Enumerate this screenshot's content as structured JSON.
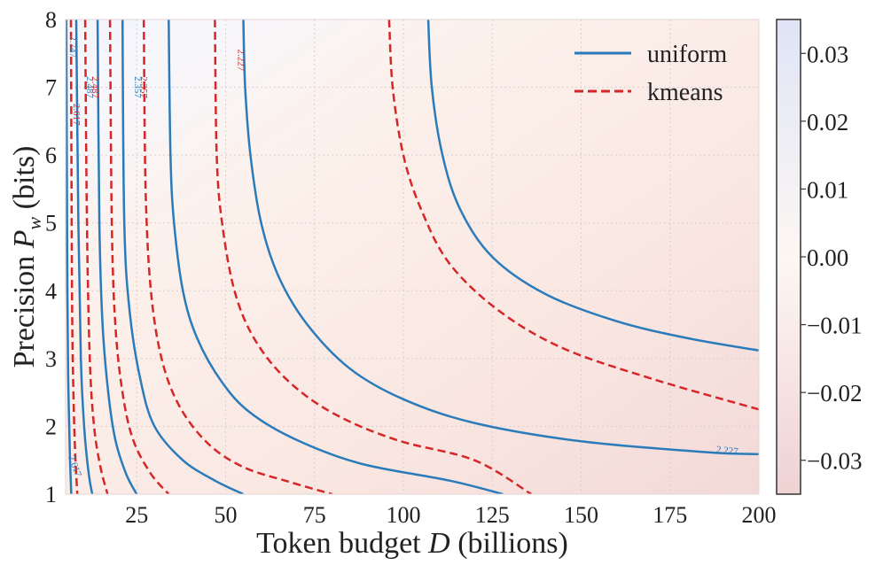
{
  "chart_data": {
    "type": "contour",
    "xlabel": "Token budget D (billions)",
    "xlabel_parts": [
      "Token budget ",
      "D",
      " (billions)"
    ],
    "ylabel": "Precision P_w (bits)",
    "ylabel_parts": [
      "Precision ",
      "P",
      "w",
      " (bits)"
    ],
    "xlim": [
      5,
      200
    ],
    "ylim": [
      1,
      8
    ],
    "xticks": [
      "25",
      "50",
      "75",
      "100",
      "125",
      "150",
      "175",
      "200"
    ],
    "xtick_values": [
      25,
      50,
      75,
      100,
      125,
      150,
      175,
      200
    ],
    "yticks": [
      "1",
      "2",
      "3",
      "4",
      "5",
      "6",
      "7",
      "8"
    ],
    "ytick_values": [
      1,
      2,
      3,
      4,
      5,
      6,
      7,
      8
    ],
    "grid": true,
    "legend": {
      "position": "top-right",
      "entries": [
        {
          "label": "uniform",
          "style": "solid",
          "color": "#2b7bba"
        },
        {
          "label": "kmeans",
          "style": "dashed",
          "color": "#d62728"
        }
      ]
    },
    "colorbar": {
      "ticks": [
        "0.03",
        "0.02",
        "0.01",
        "0.00",
        "−0.01",
        "−0.02",
        "−0.03"
      ],
      "tick_values": [
        0.03,
        0.02,
        0.01,
        0.0,
        -0.01,
        -0.02,
        -0.03
      ],
      "range": [
        -0.035,
        0.035
      ],
      "colors": {
        "high": "#dde3f6",
        "mid": "#fdf6f2",
        "low": "#efd0d2"
      }
    },
    "series": [
      {
        "name": "uniform",
        "color": "#2b7bba",
        "style": "solid",
        "contours": [
          {
            "points": [
              [
                5.2,
                8
              ],
              [
                5.5,
                4
              ],
              [
                5.8,
                2.5
              ],
              [
                6.2,
                1.6
              ],
              [
                6.6,
                1
              ]
            ]
          },
          {
            "points": [
              [
                8,
                8
              ],
              [
                8.6,
                5
              ],
              [
                9.3,
                3
              ],
              [
                10.2,
                2
              ],
              [
                11.5,
                1.3
              ],
              [
                12.5,
                1
              ]
            ]
          },
          {
            "points": [
              [
                14,
                8
              ],
              [
                14.5,
                5
              ],
              [
                15.4,
                3.5
              ],
              [
                17,
                2.5
              ],
              [
                19,
                1.8
              ],
              [
                22,
                1.3
              ],
              [
                25,
                1
              ]
            ]
          },
          {
            "points": [
              [
                21,
                8
              ],
              [
                21.5,
                5
              ],
              [
                23,
                3.7
              ],
              [
                26,
                2.7
              ],
              [
                30,
                2
              ],
              [
                38,
                1.5
              ],
              [
                47,
                1.2
              ],
              [
                55,
                1
              ]
            ]
          },
          {
            "points": [
              [
                34,
                8
              ],
              [
                34.5,
                6
              ],
              [
                35.5,
                5
              ],
              [
                38,
                4
              ],
              [
                42,
                3.3
              ],
              [
                49,
                2.65
              ],
              [
                57,
                2.2
              ],
              [
                70,
                1.8
              ],
              [
                88,
                1.45
              ],
              [
                113,
                1.2
              ],
              [
                128,
                1
              ]
            ]
          },
          {
            "points": [
              [
                55,
                8
              ],
              [
                55.5,
                7
              ],
              [
                57,
                6
              ],
              [
                60,
                5
              ],
              [
                65,
                4.2
              ],
              [
                73,
                3.5
              ],
              [
                85,
                2.85
              ],
              [
                100,
                2.4
              ],
              [
                120,
                2.05
              ],
              [
                150,
                1.78
              ],
              [
                185,
                1.62
              ],
              [
                200,
                1.59
              ]
            ]
          },
          {
            "points": [
              [
                107,
                8
              ],
              [
                108,
                7
              ],
              [
                111,
                6
              ],
              [
                116,
                5.2
              ],
              [
                125,
                4.5
              ],
              [
                140,
                3.95
              ],
              [
                160,
                3.55
              ],
              [
                180,
                3.3
              ],
              [
                200,
                3.12
              ]
            ]
          }
        ],
        "labels": [
          {
            "text": "2.227",
            "x": 191,
            "y": 1.6,
            "rotate": 6
          },
          {
            "text": "2.487",
            "x": 11,
            "y": 7.0,
            "rotate": 90
          },
          {
            "text": "2.357",
            "x": 24.5,
            "y": 7.0,
            "rotate": 90
          },
          {
            "text": "2.747",
            "x": 6.2,
            "y": 7.6,
            "rotate": 90
          },
          {
            "text": "2.617",
            "x": 6.8,
            "y": 1.4,
            "rotate": 70
          }
        ]
      },
      {
        "name": "kmeans",
        "color": "#d62728",
        "style": "dashed",
        "contours": [
          {
            "points": [
              [
                6.5,
                8
              ],
              [
                6.8,
                4
              ],
              [
                7.2,
                2.5
              ],
              [
                7.7,
                1.6
              ],
              [
                8.3,
                1
              ]
            ]
          },
          {
            "points": [
              [
                10.5,
                8
              ],
              [
                11,
                5
              ],
              [
                11.8,
                3
              ],
              [
                13,
                2
              ],
              [
                14.8,
                1.4
              ],
              [
                16.8,
                1
              ]
            ]
          },
          {
            "points": [
              [
                17.5,
                8
              ],
              [
                18,
                5
              ],
              [
                19,
                3.5
              ],
              [
                21,
                2.5
              ],
              [
                24,
                1.8
              ],
              [
                29,
                1.3
              ],
              [
                34,
                1
              ]
            ]
          },
          {
            "points": [
              [
                27,
                8
              ],
              [
                27.5,
                5.5
              ],
              [
                29,
                4
              ],
              [
                32,
                3
              ],
              [
                37,
                2.3
              ],
              [
                45,
                1.75
              ],
              [
                55,
                1.4
              ],
              [
                68,
                1.18
              ],
              [
                80,
                1
              ]
            ]
          },
          {
            "points": [
              [
                47,
                8
              ],
              [
                47.5,
                6
              ],
              [
                49,
                5
              ],
              [
                52.5,
                4
              ],
              [
                58,
                3.3
              ],
              [
                67,
                2.7
              ],
              [
                80,
                2.2
              ],
              [
                98,
                1.8
              ],
              [
                120,
                1.5
              ],
              [
                136,
                1
              ]
            ]
          },
          {
            "points": [
              [
                96,
                8
              ],
              [
                97,
                7
              ],
              [
                100,
                6
              ],
              [
                105,
                5.2
              ],
              [
                113,
                4.4
              ],
              [
                127,
                3.7
              ],
              [
                145,
                3.15
              ],
              [
                170,
                2.7
              ],
              [
                200,
                2.25
              ]
            ]
          }
        ],
        "labels": [
          {
            "text": "2.227",
            "x": 53.5,
            "y": 7.4,
            "rotate": 90
          },
          {
            "text": "2.487",
            "x": 12.5,
            "y": 7.0,
            "rotate": 90
          },
          {
            "text": "2.357",
            "x": 26.2,
            "y": 7.0,
            "rotate": 90
          },
          {
            "text": "2.617",
            "x": 7.3,
            "y": 6.6,
            "rotate": 90
          }
        ]
      }
    ]
  }
}
